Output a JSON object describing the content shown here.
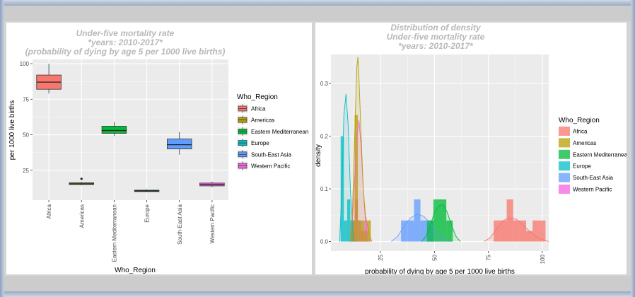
{
  "colors": {
    "Africa": "#F8766D",
    "Americas": "#B79F00",
    "Eastern Mediterranean": "#00BA38",
    "Europe": "#00BFC4",
    "South-East Asia": "#619CFF",
    "Western Pacific": "#F564E3"
  },
  "chart_data": [
    {
      "type": "box",
      "title": "Under-five mortality rate",
      "subtitle1": "*years: 2010-2017*",
      "subtitle2": "(probability of dying by age 5 per 1000 live births)",
      "xlabel": "Who_Region",
      "ylabel": "per 1000 live births",
      "ylim": [
        4,
        103
      ],
      "yticks": [
        "25",
        "50",
        "75",
        "100"
      ],
      "categories": [
        "Africa",
        "Americas",
        "Eastern Mediterranean",
        "Europe",
        "South-East Asia",
        "Western Pacific"
      ],
      "boxes": [
        {
          "name": "Africa",
          "min": 79,
          "q1": 82,
          "median": 87,
          "q3": 92,
          "max": 100,
          "outliers": []
        },
        {
          "name": "Americas",
          "min": 14.5,
          "q1": 15,
          "median": 15.5,
          "q3": 16.2,
          "max": 16.8,
          "outliers": [
            19
          ]
        },
        {
          "name": "Eastern Mediterranean",
          "min": 49,
          "q1": 51,
          "median": 53,
          "q3": 56,
          "max": 59,
          "outliers": []
        },
        {
          "name": "Europe",
          "min": 9.6,
          "q1": 10,
          "median": 10.5,
          "q3": 11,
          "max": 11.6,
          "outliers": []
        },
        {
          "name": "South-East Asia",
          "min": 36,
          "q1": 40,
          "median": 43,
          "q3": 47,
          "max": 52,
          "outliers": []
        },
        {
          "name": "Western Pacific",
          "min": 13,
          "q1": 14,
          "median": 15,
          "q3": 16,
          "max": 17,
          "outliers": []
        }
      ],
      "legend_title": "Who_Region",
      "legend_position": "right",
      "grid": true
    },
    {
      "type": "histogram-density",
      "title": "Distribution of density",
      "subtitle1": "Under-five mortality rate",
      "subtitle2": "*years: 2010-2017*",
      "xlabel": "probability of dying by age 5 per 1000 live births",
      "ylabel": "density",
      "xlim": [
        2,
        103
      ],
      "ylim": [
        -0.018,
        0.355
      ],
      "xticks": [
        "25",
        "50",
        "75",
        "100"
      ],
      "yticks": [
        "0.0",
        "0.1",
        "0.2",
        "0.3"
      ],
      "legend_title": "Who_Region",
      "legend_position": "right",
      "grid": true,
      "series": [
        {
          "name": "Africa",
          "bins": [
            [
              77.5,
              80.5,
              0.04
            ],
            [
              80.5,
              83.5,
              0.04
            ],
            [
              83.5,
              86.5,
              0.08
            ],
            [
              86.5,
              89.5,
              0.04
            ],
            [
              89.5,
              92.5,
              0.04
            ],
            [
              92.5,
              95.5,
              0.02
            ],
            [
              95.5,
              98.5,
              0.04
            ],
            [
              98.5,
              101.5,
              0.04
            ]
          ],
          "density": [
            [
              73,
              0.0
            ],
            [
              76,
              0.008
            ],
            [
              79,
              0.025
            ],
            [
              82,
              0.04
            ],
            [
              85,
              0.045
            ],
            [
              88,
              0.042
            ],
            [
              91,
              0.032
            ],
            [
              94,
              0.02
            ],
            [
              97,
              0.01
            ],
            [
              100,
              0.004
            ],
            [
              103,
              0.0
            ]
          ]
        },
        {
          "name": "Americas",
          "bins": [
            [
              11.5,
              13,
              0.04
            ],
            [
              13,
              14.5,
              0.24
            ],
            [
              14.5,
              16,
              0.04
            ],
            [
              16,
              17.5,
              0.04
            ],
            [
              17.5,
              19,
              0.02
            ],
            [
              19,
              20.5,
              0.04
            ]
          ],
          "density": [
            [
              11,
              0.0
            ],
            [
              12,
              0.06
            ],
            [
              13,
              0.2
            ],
            [
              14,
              0.33
            ],
            [
              14.5,
              0.35
            ],
            [
              15,
              0.31
            ],
            [
              16,
              0.2
            ],
            [
              17,
              0.1
            ],
            [
              18,
              0.05
            ],
            [
              19,
              0.03
            ],
            [
              20,
              0.01
            ],
            [
              21,
              0.0
            ]
          ]
        },
        {
          "name": "Eastern Mediterranean",
          "bins": [
            [
              46.5,
              49.5,
              0.04
            ],
            [
              49.5,
              52.5,
              0.08
            ],
            [
              52.5,
              55.5,
              0.08
            ],
            [
              55.5,
              58.5,
              0.04
            ]
          ],
          "density": [
            [
              44,
              0.0
            ],
            [
              46,
              0.01
            ],
            [
              48,
              0.03
            ],
            [
              50,
              0.055
            ],
            [
              52,
              0.068
            ],
            [
              54,
              0.07
            ],
            [
              56,
              0.055
            ],
            [
              58,
              0.03
            ],
            [
              60,
              0.01
            ],
            [
              62,
              0.0
            ]
          ]
        },
        {
          "name": "Europe",
          "bins": [
            [
              6.5,
              8,
              0.2
            ],
            [
              8,
              9.5,
              0.04
            ],
            [
              9.5,
              11,
              0.08
            ],
            [
              11,
              12.5,
              0.04
            ]
          ],
          "density": [
            [
              6,
              0.0
            ],
            [
              7,
              0.09
            ],
            [
              8,
              0.24
            ],
            [
              9,
              0.28
            ],
            [
              10,
              0.22
            ],
            [
              11,
              0.1
            ],
            [
              12,
              0.03
            ],
            [
              13,
              0.0
            ]
          ]
        },
        {
          "name": "South-East Asia",
          "bins": [
            [
              34.5,
              37.5,
              0.04
            ],
            [
              37.5,
              40.5,
              0.04
            ],
            [
              40.5,
              43.5,
              0.08
            ],
            [
              43.5,
              46.5,
              0.04
            ],
            [
              46.5,
              49.5,
              0.04
            ]
          ],
          "density": [
            [
              30,
              0.0
            ],
            [
              33,
              0.01
            ],
            [
              36,
              0.03
            ],
            [
              39,
              0.045
            ],
            [
              42,
              0.052
            ],
            [
              45,
              0.048
            ],
            [
              48,
              0.035
            ],
            [
              51,
              0.018
            ],
            [
              54,
              0.006
            ],
            [
              57,
              0.0
            ]
          ]
        },
        {
          "name": "Western Pacific",
          "bins": [
            [
              11.5,
              13,
              0.04
            ],
            [
              13,
              14.5,
              0.08
            ],
            [
              14.5,
              16,
              0.04
            ],
            [
              16,
              17.5,
              0.02
            ],
            [
              17.5,
              19,
              0.04
            ]
          ],
          "density": [
            [
              11,
              0.0
            ],
            [
              12,
              0.04
            ],
            [
              13,
              0.12
            ],
            [
              14,
              0.2
            ],
            [
              15,
              0.23
            ],
            [
              16,
              0.18
            ],
            [
              17,
              0.1
            ],
            [
              18,
              0.04
            ],
            [
              19,
              0.01
            ],
            [
              20,
              0.0
            ]
          ]
        }
      ]
    }
  ]
}
